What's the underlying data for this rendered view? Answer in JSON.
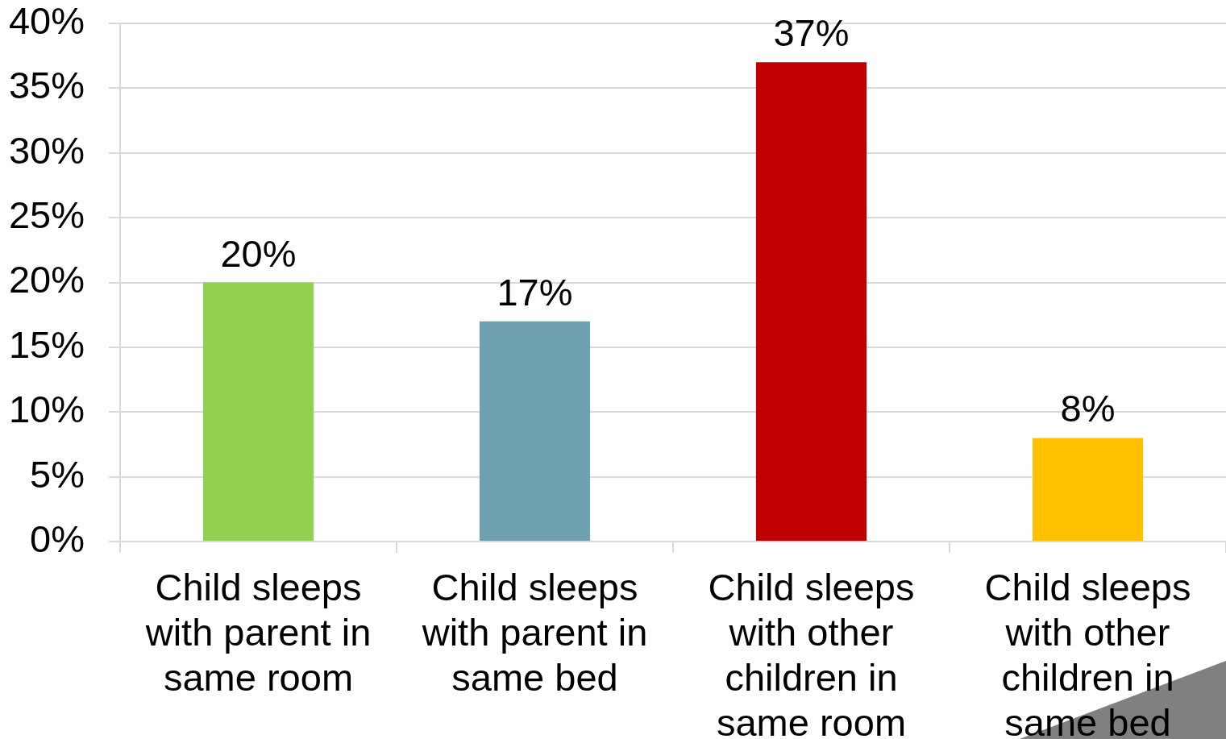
{
  "chart_data": {
    "type": "bar",
    "categories": [
      "Child sleeps with parent in same room",
      "Child sleeps with parent in same bed",
      "Child sleeps with other children in same room",
      "Child sleeps with other children in same bed"
    ],
    "values": [
      20,
      17,
      37,
      8
    ],
    "colors": [
      "#92d050",
      "#70a1b0",
      "#c00000",
      "#ffc000"
    ],
    "value_labels": [
      "20%",
      "17%",
      "37%",
      "8%"
    ],
    "ylim": [
      0,
      40
    ],
    "yticks": [
      {
        "value": 0,
        "label": "0%"
      },
      {
        "value": 5,
        "label": "5%"
      },
      {
        "value": 10,
        "label": "10%"
      },
      {
        "value": 15,
        "label": "15%"
      },
      {
        "value": 20,
        "label": "20%"
      },
      {
        "value": 25,
        "label": "25%"
      },
      {
        "value": 30,
        "label": "30%"
      },
      {
        "value": 35,
        "label": "35%"
      },
      {
        "value": 40,
        "label": "40%"
      }
    ],
    "grid": "y"
  }
}
